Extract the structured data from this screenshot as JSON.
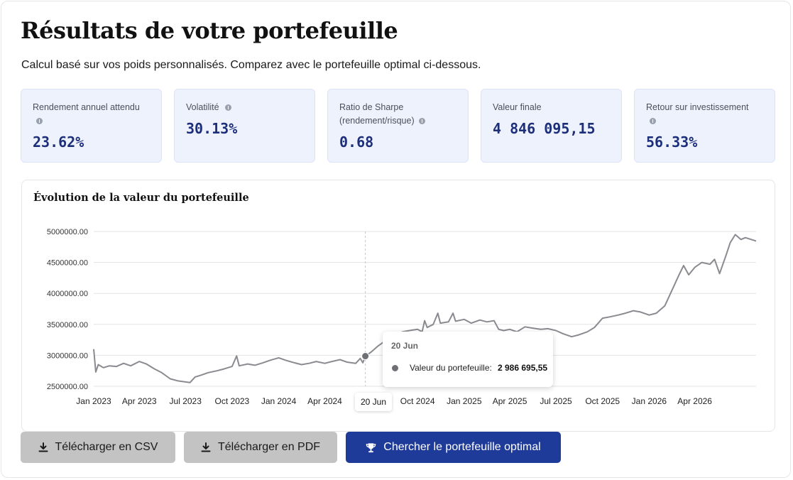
{
  "header": {
    "title": "Résultats de votre portefeuille",
    "subtitle": "Calcul basé sur vos poids personnalisés. Comparez avec le portefeuille optimal ci-dessous."
  },
  "metrics": [
    {
      "label": "Rendement annuel attendu",
      "value": "23.62%"
    },
    {
      "label": "Volatilité",
      "value": "30.13%"
    },
    {
      "label": "Ratio de Sharpe (rendement/risque)",
      "value": "0.68"
    },
    {
      "label": "Valeur finale",
      "value": "4 846 095,15"
    },
    {
      "label": "Retour sur investissement",
      "value": "56.33%"
    }
  ],
  "chart": {
    "title": "Évolution de la valeur du portefeuille",
    "tooltip": {
      "date": "20 Jun",
      "series_label": "Valeur du portefeuille:",
      "value": "2 986 695,55"
    },
    "hover_x_label": "20 Jun"
  },
  "chart_data": {
    "type": "line",
    "title": "Évolution de la valeur du portefeuille",
    "xlabel": "",
    "ylabel": "",
    "y_ticks": [
      "2500000.00",
      "3000000.00",
      "3500000.00",
      "4000000.00",
      "4500000.00",
      "5000000.00"
    ],
    "ylim": [
      2500000,
      5000000
    ],
    "x_ticks": [
      "Jan 2023",
      "Apr 2023",
      "Jul 2023",
      "Oct 2023",
      "Jan 2024",
      "Apr 2024",
      "Jul 2024",
      "Oct 2024",
      "Jan 2025",
      "Apr 2025",
      "Jul 2025",
      "Oct 2025",
      "Jan 2026",
      "Apr 2026"
    ],
    "xlim": [
      "2023-01-01",
      "2026-07-31"
    ],
    "grid": true,
    "series": [
      {
        "color": "#8a8b90",
        "points": [
          [
            "2023-01-01",
            3100000
          ],
          [
            "2023-01-05",
            2730000
          ],
          [
            "2023-01-10",
            2850000
          ],
          [
            "2023-01-20",
            2800000
          ],
          [
            "2023-02-01",
            2830000
          ],
          [
            "2023-02-15",
            2820000
          ],
          [
            "2023-03-01",
            2870000
          ],
          [
            "2023-03-15",
            2830000
          ],
          [
            "2023-04-01",
            2900000
          ],
          [
            "2023-04-15",
            2860000
          ],
          [
            "2023-05-01",
            2780000
          ],
          [
            "2023-05-15",
            2720000
          ],
          [
            "2023-06-01",
            2620000
          ],
          [
            "2023-06-15",
            2590000
          ],
          [
            "2023-07-01",
            2570000
          ],
          [
            "2023-07-10",
            2560000
          ],
          [
            "2023-07-20",
            2650000
          ],
          [
            "2023-08-01",
            2680000
          ],
          [
            "2023-08-15",
            2720000
          ],
          [
            "2023-09-01",
            2750000
          ],
          [
            "2023-09-15",
            2780000
          ],
          [
            "2023-10-01",
            2820000
          ],
          [
            "2023-10-10",
            2990000
          ],
          [
            "2023-10-15",
            2830000
          ],
          [
            "2023-11-01",
            2860000
          ],
          [
            "2023-11-15",
            2840000
          ],
          [
            "2023-12-01",
            2880000
          ],
          [
            "2023-12-15",
            2920000
          ],
          [
            "2024-01-01",
            2960000
          ],
          [
            "2024-01-15",
            2920000
          ],
          [
            "2024-02-01",
            2880000
          ],
          [
            "2024-02-15",
            2850000
          ],
          [
            "2024-03-01",
            2870000
          ],
          [
            "2024-03-15",
            2900000
          ],
          [
            "2024-04-01",
            2870000
          ],
          [
            "2024-04-15",
            2900000
          ],
          [
            "2024-05-01",
            2930000
          ],
          [
            "2024-05-15",
            2890000
          ],
          [
            "2024-06-01",
            2870000
          ],
          [
            "2024-06-10",
            2950000
          ],
          [
            "2024-06-15",
            2880000
          ],
          [
            "2024-06-20",
            2986696
          ],
          [
            "2024-07-01",
            3050000
          ],
          [
            "2024-07-15",
            3150000
          ],
          [
            "2024-08-01",
            3250000
          ],
          [
            "2024-08-15",
            3320000
          ],
          [
            "2024-09-01",
            3380000
          ],
          [
            "2024-09-15",
            3400000
          ],
          [
            "2024-10-01",
            3420000
          ],
          [
            "2024-10-10",
            3380000
          ],
          [
            "2024-10-15",
            3560000
          ],
          [
            "2024-10-20",
            3450000
          ],
          [
            "2024-11-01",
            3500000
          ],
          [
            "2024-11-10",
            3680000
          ],
          [
            "2024-11-15",
            3520000
          ],
          [
            "2024-12-01",
            3540000
          ],
          [
            "2024-12-10",
            3680000
          ],
          [
            "2024-12-15",
            3550000
          ],
          [
            "2025-01-01",
            3580000
          ],
          [
            "2025-01-15",
            3520000
          ],
          [
            "2025-02-01",
            3570000
          ],
          [
            "2025-02-15",
            3540000
          ],
          [
            "2025-03-01",
            3560000
          ],
          [
            "2025-03-10",
            3420000
          ],
          [
            "2025-03-20",
            3400000
          ],
          [
            "2025-04-01",
            3420000
          ],
          [
            "2025-04-15",
            3380000
          ],
          [
            "2025-05-01",
            3460000
          ],
          [
            "2025-05-15",
            3440000
          ],
          [
            "2025-06-01",
            3420000
          ],
          [
            "2025-06-15",
            3430000
          ],
          [
            "2025-07-01",
            3400000
          ],
          [
            "2025-07-15",
            3350000
          ],
          [
            "2025-08-01",
            3300000
          ],
          [
            "2025-08-15",
            3330000
          ],
          [
            "2025-09-01",
            3380000
          ],
          [
            "2025-09-15",
            3450000
          ],
          [
            "2025-10-01",
            3600000
          ],
          [
            "2025-10-15",
            3620000
          ],
          [
            "2025-11-01",
            3650000
          ],
          [
            "2025-11-15",
            3680000
          ],
          [
            "2025-12-01",
            3720000
          ],
          [
            "2025-12-15",
            3700000
          ],
          [
            "2026-01-01",
            3650000
          ],
          [
            "2026-01-15",
            3680000
          ],
          [
            "2026-02-01",
            3800000
          ],
          [
            "2026-02-15",
            4050000
          ],
          [
            "2026-03-01",
            4300000
          ],
          [
            "2026-03-10",
            4450000
          ],
          [
            "2026-03-20",
            4300000
          ],
          [
            "2026-04-01",
            4420000
          ],
          [
            "2026-04-15",
            4500000
          ],
          [
            "2026-05-01",
            4470000
          ],
          [
            "2026-05-10",
            4550000
          ],
          [
            "2026-05-20",
            4320000
          ],
          [
            "2026-06-01",
            4600000
          ],
          [
            "2026-06-10",
            4820000
          ],
          [
            "2026-06-20",
            4950000
          ],
          [
            "2026-07-01",
            4870000
          ],
          [
            "2026-07-10",
            4900000
          ],
          [
            "2026-07-31",
            4846095
          ]
        ]
      }
    ]
  },
  "buttons": {
    "csv": "Télécharger en CSV",
    "pdf": "Télécharger en PDF",
    "optimal": "Chercher le portefeuille optimal"
  },
  "icons": {
    "csv": "download-icon",
    "pdf": "download-icon",
    "optimal": "trophy-icon"
  },
  "colors": {
    "accent": "#1f3b99",
    "metric_bg": "#eef2fd",
    "metric_value": "#1d2f7a",
    "line": "#8a8b90"
  }
}
